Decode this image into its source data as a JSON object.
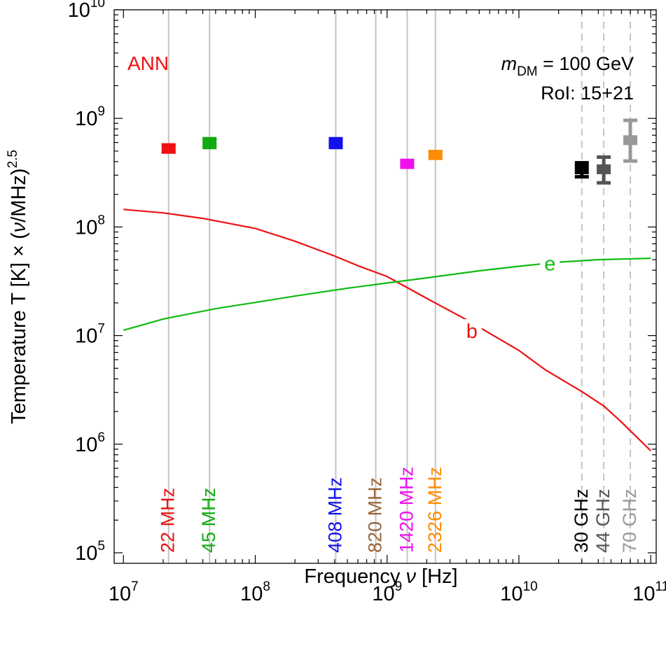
{
  "chart_data": {
    "type": "scatter",
    "xscale": "log",
    "yscale": "log",
    "xlim": [
      8500000.0,
      110000000000.0
    ],
    "ylim": [
      80000,
      10000000000.0
    ],
    "xlabel_prefix": "Frequency ",
    "xlabel_symbol": "ν",
    "xlabel_suffix": " [Hz]",
    "ylabel_prefix": "Temperature T [K] × (",
    "ylabel_symbol": "ν",
    "ylabel_suffix": "/MHz)",
    "ylabel_exp": "2.5",
    "xticks": [
      {
        "value": 10000000.0,
        "base": "10",
        "exp": "7"
      },
      {
        "value": 100000000.0,
        "base": "10",
        "exp": "8"
      },
      {
        "value": 1000000000.0,
        "base": "10",
        "exp": "9"
      },
      {
        "value": 10000000000.0,
        "base": "10",
        "exp": "10"
      },
      {
        "value": 100000000000.0,
        "base": "10",
        "exp": "11"
      }
    ],
    "yticks": [
      {
        "value": 100000.0,
        "base": "10",
        "exp": "5"
      },
      {
        "value": 1000000.0,
        "base": "10",
        "exp": "6"
      },
      {
        "value": 10000000.0,
        "base": "10",
        "exp": "7"
      },
      {
        "value": 100000000.0,
        "base": "10",
        "exp": "8"
      },
      {
        "value": 1000000000.0,
        "base": "10",
        "exp": "9"
      },
      {
        "value": 10000000000.0,
        "base": "10",
        "exp": "10"
      }
    ],
    "grid": false,
    "annotations": {
      "ann_label": "ANN",
      "ann_color": "#ee1111",
      "mass_symbol": "m",
      "mass_subscript": "DM",
      "mass_value": " = 100 GeV",
      "roi_label": "RoI: 15+21"
    },
    "frequency_markers": [
      {
        "freq": 22000000.0,
        "label": "22 MHz",
        "color": "#ee1111",
        "style": "solid"
      },
      {
        "freq": 45000000.0,
        "label": "45 MHz",
        "color": "#11aa11",
        "style": "solid"
      },
      {
        "freq": 408000000.0,
        "label": "408 MHz",
        "color": "#1111ee",
        "style": "solid"
      },
      {
        "freq": 820000000.0,
        "label": "820 MHz",
        "color": "#99663a",
        "style": "solid"
      },
      {
        "freq": 1420000000.0,
        "label": "1420 MHz",
        "color": "#ee11ee",
        "style": "solid"
      },
      {
        "freq": 2326000000.0,
        "label": "2326 MHz",
        "color": "#ff8c00",
        "style": "solid"
      },
      {
        "freq": 30000000000.0,
        "label": "30 GHz",
        "color": "#000000",
        "style": "dashed"
      },
      {
        "freq": 44000000000.0,
        "label": "44 GHz",
        "color": "#555555",
        "style": "dashed"
      },
      {
        "freq": 70000000000.0,
        "label": "70 GHz",
        "color": "#999999",
        "style": "dashed"
      }
    ],
    "points": [
      {
        "x": 22000000.0,
        "y": 530000000.0,
        "ylow": 490000000.0,
        "yhigh": 570000000.0,
        "color": "#ee1111"
      },
      {
        "x": 45000000.0,
        "y": 590000000.0,
        "ylow": 540000000.0,
        "yhigh": 650000000.0,
        "color": "#11aa11"
      },
      {
        "x": 408000000.0,
        "y": 590000000.0,
        "ylow": 540000000.0,
        "yhigh": 650000000.0,
        "color": "#1111ee"
      },
      {
        "x": 1420000000.0,
        "y": 380000000.0,
        "ylow": 355000000.0,
        "yhigh": 410000000.0,
        "color": "#ee11ee"
      },
      {
        "x": 2326000000.0,
        "y": 460000000.0,
        "ylow": 430000000.0,
        "yhigh": 495000000.0,
        "color": "#ff8c00"
      },
      {
        "x": 30000000000.0,
        "y": 340000000.0,
        "ylow": 290000000.0,
        "yhigh": 390000000.0,
        "color": "#000000"
      },
      {
        "x": 44000000000.0,
        "y": 340000000.0,
        "ylow": 255000000.0,
        "yhigh": 440000000.0,
        "color": "#555555"
      },
      {
        "x": 70000000000.0,
        "y": 630000000.0,
        "ylow": 405000000.0,
        "yhigh": 960000000.0,
        "color": "#999999"
      }
    ],
    "series": [
      {
        "name": "b",
        "color": "#ee1111",
        "x": [
          10000000.0,
          20000000.0,
          40000000.0,
          100000000.0,
          200000000.0,
          400000000.0,
          600000000.0,
          1000000000.0,
          2000000000.0,
          4000000000.0,
          10000000000.0,
          16000000000.0,
          30000000000.0,
          44000000000.0,
          60000000000.0,
          100000000000.0
        ],
        "y": [
          145000000.0,
          135000000.0,
          120000000.0,
          97000000.0,
          74000000.0,
          54000000.0,
          44000000.0,
          35000000.0,
          22000000.0,
          14000000.0,
          7300000.0,
          4800000.0,
          3050000.0,
          2250000.0,
          1600000.0,
          870000.0
        ],
        "label_x": 4400000000.0,
        "label_y": 11000000.0
      },
      {
        "name": "e",
        "color": "#11bb11",
        "x": [
          10000000.0,
          20000000.0,
          50000000.0,
          100000000.0,
          200000000.0,
          500000000.0,
          1000000000.0,
          2000000000.0,
          5000000000.0,
          10000000000.0,
          20000000000.0,
          40000000000.0,
          100000000000.0
        ],
        "y": [
          11200000.0,
          14200000.0,
          17700000.0,
          20200000.0,
          23100000.0,
          27300000.0,
          30500000.0,
          34000000.0,
          39500000.0,
          43500000.0,
          47500000.0,
          50000000.0,
          51500000.0
        ],
        "label_x": 17200000000.0,
        "label_y": 46000000.0
      }
    ]
  }
}
